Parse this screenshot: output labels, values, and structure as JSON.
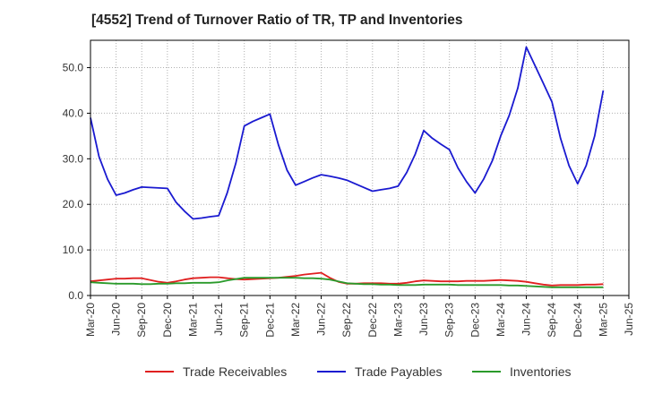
{
  "chart_data": {
    "type": "line",
    "title": "[4552]  Trend of Turnover Ratio of TR, TP and Inventories",
    "xlabel": "",
    "ylabel": "",
    "ylim": [
      0,
      56
    ],
    "yticks": [
      {
        "value": 0,
        "label": "0.0"
      },
      {
        "value": 10,
        "label": "10.0"
      },
      {
        "value": 20,
        "label": "20.0"
      },
      {
        "value": 30,
        "label": "30.0"
      },
      {
        "value": 40,
        "label": "40.0"
      },
      {
        "value": 50,
        "label": "50.0"
      }
    ],
    "x": [
      "2020-03",
      "2020-04",
      "2020-05",
      "2020-06",
      "2020-07",
      "2020-08",
      "2020-09",
      "2020-10",
      "2020-11",
      "2020-12",
      "2021-01",
      "2021-02",
      "2021-03",
      "2021-04",
      "2021-05",
      "2021-06",
      "2021-07",
      "2021-08",
      "2021-09",
      "2021-10",
      "2021-11",
      "2021-12",
      "2022-01",
      "2022-02",
      "2022-03",
      "2022-04",
      "2022-05",
      "2022-06",
      "2022-07",
      "2022-08",
      "2022-09",
      "2022-10",
      "2022-11",
      "2022-12",
      "2023-01",
      "2023-02",
      "2023-03",
      "2023-04",
      "2023-05",
      "2023-06",
      "2023-07",
      "2023-08",
      "2023-09",
      "2023-10",
      "2023-11",
      "2023-12",
      "2024-01",
      "2024-02",
      "2024-03",
      "2024-04",
      "2024-05",
      "2024-06",
      "2024-07",
      "2024-08",
      "2024-09",
      "2024-10",
      "2024-11",
      "2024-12",
      "2025-01",
      "2025-02",
      "2025-03"
    ],
    "xticks": [
      "Mar-20",
      "Jun-20",
      "Sep-20",
      "Dec-20",
      "Mar-21",
      "Jun-21",
      "Sep-21",
      "Dec-21",
      "Mar-22",
      "Jun-22",
      "Sep-22",
      "Dec-22",
      "Mar-23",
      "Jun-23",
      "Sep-23",
      "Dec-23",
      "Mar-24",
      "Jun-24",
      "Sep-24",
      "Dec-24",
      "Mar-25",
      "Jun-25"
    ],
    "series": [
      {
        "name": "Trade Receivables",
        "color": "#e02020",
        "values": [
          3.1,
          3.3,
          3.5,
          3.7,
          3.7,
          3.8,
          3.8,
          3.4,
          3.0,
          2.8,
          3.1,
          3.5,
          3.8,
          3.9,
          4.0,
          4.0,
          3.8,
          3.6,
          3.5,
          3.6,
          3.7,
          3.8,
          3.9,
          4.1,
          4.3,
          4.6,
          4.8,
          5.0,
          3.9,
          3.0,
          2.6,
          2.6,
          2.7,
          2.7,
          2.7,
          2.6,
          2.6,
          2.8,
          3.1,
          3.3,
          3.2,
          3.1,
          3.1,
          3.1,
          3.2,
          3.2,
          3.2,
          3.3,
          3.4,
          3.3,
          3.2,
          3.0,
          2.7,
          2.4,
          2.2,
          2.3,
          2.3,
          2.3,
          2.4,
          2.4,
          2.5
        ]
      },
      {
        "name": "Trade Payables",
        "color": "#1a1ad0",
        "values": [
          39.0,
          30.5,
          25.5,
          22.0,
          22.5,
          23.2,
          23.8,
          23.7,
          23.6,
          23.5,
          20.5,
          18.5,
          16.8,
          17.0,
          17.3,
          17.5,
          22.5,
          29.0,
          37.2,
          38.2,
          39.0,
          39.8,
          33.0,
          27.5,
          24.2,
          25.0,
          25.8,
          26.5,
          26.2,
          25.8,
          25.3,
          24.5,
          23.7,
          22.9,
          23.2,
          23.5,
          24.0,
          27.0,
          31.0,
          36.2,
          34.5,
          33.2,
          32.0,
          28.0,
          25.0,
          22.5,
          25.5,
          29.5,
          35.0,
          39.5,
          45.5,
          54.5,
          50.5,
          46.5,
          42.5,
          34.5,
          28.5,
          24.5,
          28.5,
          35.0,
          45.0
        ]
      },
      {
        "name": "Inventories",
        "color": "#2a9a2a",
        "values": [
          2.9,
          2.8,
          2.7,
          2.6,
          2.6,
          2.6,
          2.5,
          2.5,
          2.6,
          2.6,
          2.7,
          2.7,
          2.8,
          2.8,
          2.8,
          2.9,
          3.3,
          3.6,
          3.9,
          3.9,
          3.9,
          3.9,
          3.9,
          3.9,
          3.9,
          3.8,
          3.8,
          3.7,
          3.5,
          3.1,
          2.7,
          2.6,
          2.5,
          2.5,
          2.4,
          2.4,
          2.3,
          2.3,
          2.3,
          2.4,
          2.4,
          2.4,
          2.4,
          2.3,
          2.3,
          2.3,
          2.3,
          2.3,
          2.3,
          2.2,
          2.2,
          2.1,
          2.0,
          1.9,
          1.8,
          1.8,
          1.8,
          1.8,
          1.8,
          1.8,
          1.8
        ]
      }
    ],
    "grid": "dotted",
    "legend": "bottom"
  }
}
